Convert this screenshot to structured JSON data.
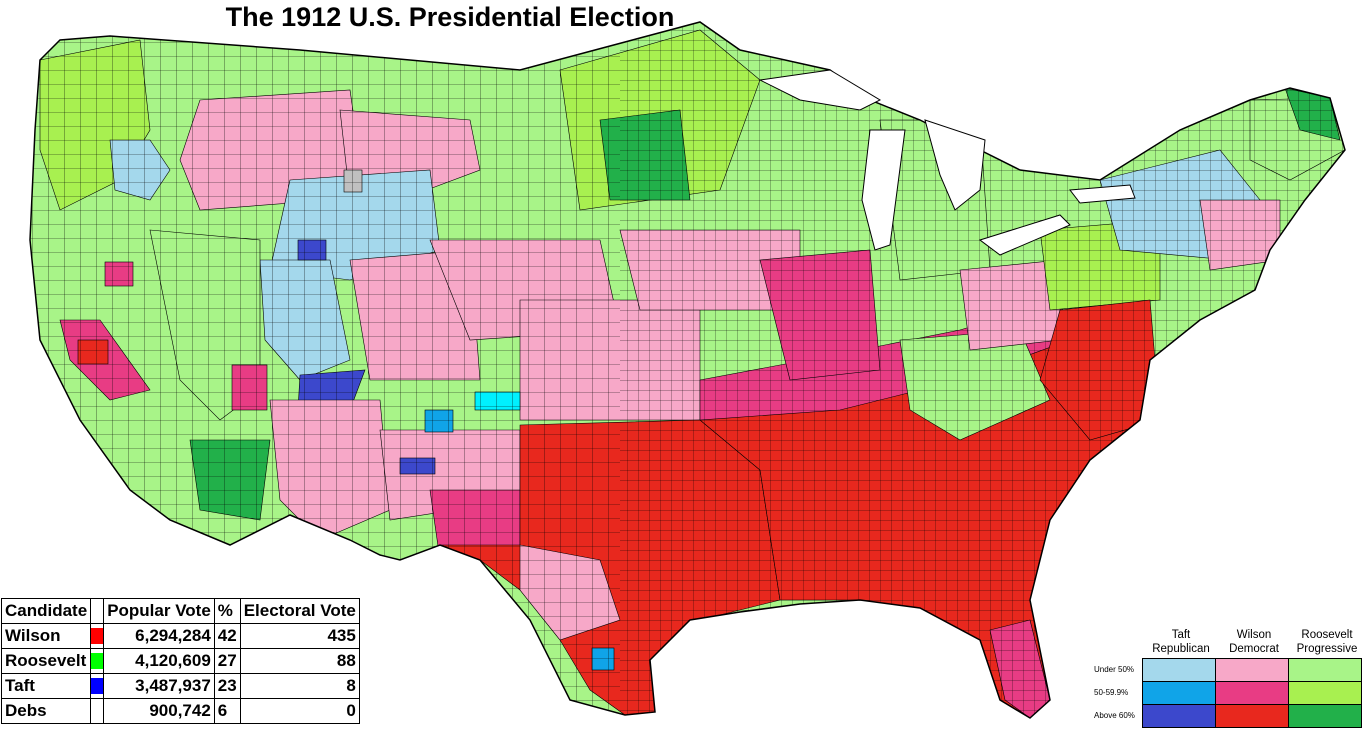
{
  "title": "The 1912 U.S. Presidential Election",
  "colors": {
    "wilson_under_50": "#f7a8c8",
    "wilson_50_60": "#e83c84",
    "wilson_above_60": "#e8281e",
    "roosevelt_under_50": "#a8f488",
    "roosevelt_50_60": "#a8f050",
    "roosevelt_above_60": "#22b04a",
    "taft_under_50": "#a4d8ec",
    "taft_50_60": "#10a4e8",
    "taft_above_60": "#3c48cc",
    "other": "#00f0ff",
    "no_data": "#c0c0c0"
  },
  "results_table": {
    "headers": [
      "Candidate",
      "",
      "Popular Vote",
      "%",
      "Electoral Vote"
    ],
    "rows": [
      {
        "candidate": "Wilson",
        "color": "#ff0000",
        "popular_vote": "6,294,284",
        "percent": "42",
        "electoral_vote": "435"
      },
      {
        "candidate": "Roosevelt",
        "color": "#00ff00",
        "popular_vote": "4,120,609",
        "percent": "27",
        "electoral_vote": "88"
      },
      {
        "candidate": "Taft",
        "color": "#0000ff",
        "popular_vote": "3,487,937",
        "percent": "23",
        "electoral_vote": "8"
      },
      {
        "candidate": "Debs",
        "color": "#ffffff",
        "popular_vote": "900,742",
        "percent": "6",
        "electoral_vote": "0"
      }
    ]
  },
  "legend": {
    "columns": [
      {
        "line1": "Taft",
        "line2": "Republican"
      },
      {
        "line1": "Wilson",
        "line2": "Democrat"
      },
      {
        "line1": "Roosevelt",
        "line2": "Progressive"
      }
    ],
    "rows": [
      "Under 50%",
      "50-59.9%",
      "Above 60%"
    ]
  }
}
